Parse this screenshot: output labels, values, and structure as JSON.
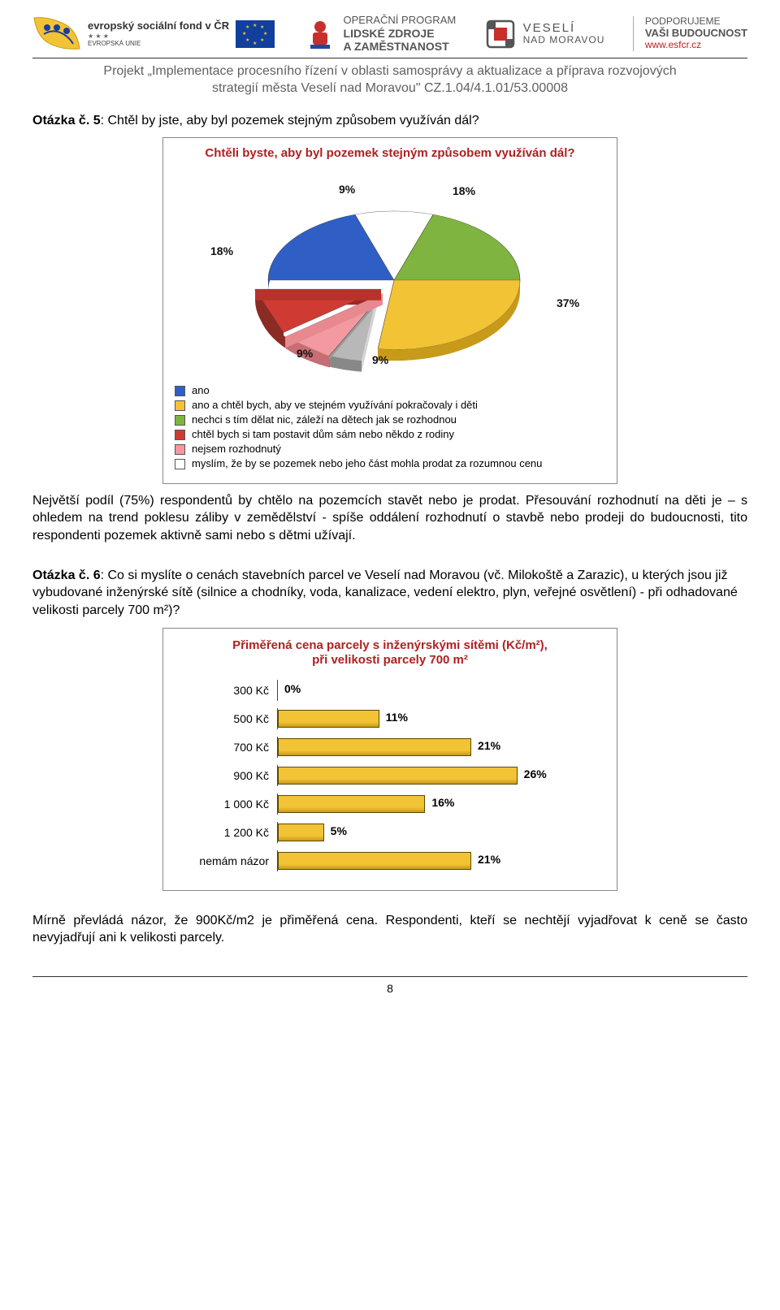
{
  "header": {
    "esf_small": "evropský sociální fond v ČR",
    "eu_label": "EVROPSKÁ UNIE",
    "op_line1": "OPERAČNÍ PROGRAM",
    "op_line2": "LIDSKÉ ZDROJE",
    "op_line3": "A ZAMĚSTNANOST",
    "city_line1": "VESELÍ",
    "city_line2": "NAD MORAVOU",
    "support_line1": "PODPORUJEME",
    "support_line2": "VAŠI BUDOUCNOST",
    "support_url": "www.esfcr.cz"
  },
  "project_title_1": "Projekt „Implementace procesního řízení v oblasti samosprávy a aktualizace a příprava rozvojových",
  "project_title_2": "strategií města Veselí nad Moravou\" CZ.1.04/4.1.01/53.00008",
  "q5_label": "Otázka č. 5",
  "q5_text": ": Chtěl by jste, aby byl pozemek stejným způsobem využíván dál?",
  "pie": {
    "title": "Chtěli byste, aby byl pozemek stejným způsobem využíván dál?",
    "labels": {
      "p18a": "18%",
      "p9a": "9%",
      "p18b": "18%",
      "p9b": "9%",
      "p9c": "9%",
      "p37": "37%"
    },
    "colors": {
      "blue": "#2f5fc4",
      "yellow": "#f2c335",
      "green": "#7fb441",
      "red": "#cf3b33",
      "pink": "#f29aa0",
      "grey": "#b8b8b8",
      "white": "#ffffff"
    },
    "legend": [
      {
        "color": "#2f5fc4",
        "text": "ano"
      },
      {
        "color": "#f2c335",
        "text": "ano a chtěl bych, aby ve stejném využívání pokračovaly i děti"
      },
      {
        "color": "#7fb441",
        "text": "nechci s tím dělat nic, záleží na dětech jak se rozhodnou"
      },
      {
        "color": "#cf3b33",
        "text": "chtěl bych si tam postavit dům sám nebo někdo z rodiny"
      },
      {
        "color": "#f29aa0",
        "text": "nejsem rozhodnutý"
      },
      {
        "color": "#ffffff",
        "text": "myslím, že by se pozemek nebo jeho část mohla prodat za rozumnou cenu"
      }
    ]
  },
  "para1": "Největší podíl (75%) respondentů by chtělo na pozemcích stavět nebo je prodat. Přesouvání rozhodnutí na děti je – s ohledem na trend poklesu záliby v zemědělství - spíše oddálení rozhodnutí o stavbě nebo prodeji do budoucnosti, tito respondenti pozemek aktivně sami nebo s dětmi užívají.",
  "q6_label": "Otázka č. 6",
  "q6_text": ": Co si myslíte o cenách stavebních parcel ve Veselí nad Moravou (vč. Milokoště a Zarazic), u kterých jsou již vybudované inženýrské sítě (silnice a chodníky, voda, kanalizace, vedení elektro, plyn, veřejné osvětlení) - při odhadované velikosti parcely 700 m²)?",
  "bars": {
    "title_l1": "Přiměřená cena parcely s inženýrskými sítěmi (Kč/m²),",
    "title_l2": "při velikosti parcely 700 m²",
    "max_pct": 30,
    "fill_color": "#f2c335",
    "rows": [
      {
        "label": "300 Kč",
        "pct": 0
      },
      {
        "label": "500 Kč",
        "pct": 11
      },
      {
        "label": "700 Kč",
        "pct": 21
      },
      {
        "label": "900 Kč",
        "pct": 26
      },
      {
        "label": "1 000 Kč",
        "pct": 16
      },
      {
        "label": "1 200 Kč",
        "pct": 5
      },
      {
        "label": "nemám názor",
        "pct": 21
      }
    ]
  },
  "para2": "Mírně převládá názor, že 900Kč/m2 je přiměřená cena. Respondenti, kteří se nechtějí vyjadřovat k ceně se často nevyjadřují ani k velikosti parcely.",
  "page_number": "8"
}
